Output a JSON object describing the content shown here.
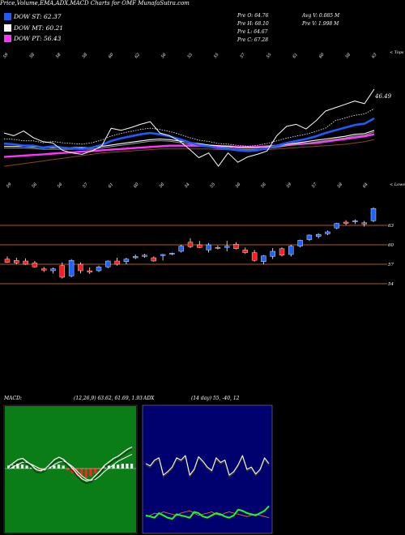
{
  "title": "Price,Volume,EMA,ADX,MACD Charts for OMF MunafaSutra.com",
  "legend": [
    {
      "label": "DOW ST: 62.37",
      "color": "#1e5bff"
    },
    {
      "label": "DOW MT: 60.21",
      "color": "#ffffff"
    },
    {
      "label": "DOW PT: 56.43",
      "color": "#ff33ff"
    }
  ],
  "ohlc": {
    "open": "Pre O: 64.76",
    "high": "Pre H: 68.10",
    "low": "Pre L: 64.67",
    "close": "Pre C: 67.28",
    "avg_vol": "Avg V: 0.085 M",
    "pre_vol": "Pre V: 1.998 M"
  },
  "macd_label": "MACD:",
  "macd_params": "(12,26,9) 63.62, 61.69, 1.93",
  "adx_label": "ADX",
  "adx_params": "(14 day) 55, -40, 12",
  "chart_data": [
    {
      "type": "line",
      "name": "price-ema",
      "top_axis_label": "< Tops",
      "bottom_axis_label": "< Lows",
      "top_numbers": [
        "59",
        "58",
        "58",
        "58",
        "60",
        "62",
        "56",
        "55",
        "55",
        "57",
        "55",
        "61",
        "60",
        "58",
        "63"
      ],
      "bottom_numbers": [
        "59",
        "56",
        "56",
        "57",
        "61",
        "60",
        "56",
        "54",
        "55",
        "56",
        "56",
        "59",
        "57",
        "58",
        "64"
      ],
      "annotation": "46.49",
      "price": [
        60.2,
        59.8,
        60.5,
        59.5,
        58.9,
        58.7,
        57.6,
        57.2,
        57.0,
        57.5,
        58.2,
        60.9,
        60.6,
        61.0,
        61.5,
        61.9,
        60.2,
        59.8,
        59.0,
        57.8,
        56.5,
        57.2,
        55.2,
        57.2,
        55.8,
        56.6,
        57.0,
        57.5,
        59.8,
        61.2,
        61.5,
        60.8,
        62.0,
        63.5,
        64.0,
        64.5,
        65.0,
        64.6,
        66.8
      ],
      "ema_st": [
        58.6,
        58.5,
        58.3,
        58.3,
        58.0,
        58.2,
        58.0,
        57.9,
        57.8,
        58.0,
        58.4,
        59.0,
        59.4,
        59.7,
        60.0,
        60.2,
        60.0,
        59.7,
        59.3,
        58.8,
        58.4,
        58.2,
        57.9,
        57.8,
        57.6,
        57.5,
        57.6,
        57.9,
        58.3,
        58.7,
        59.0,
        59.3,
        59.7,
        60.2,
        60.6,
        61.0,
        61.4,
        61.6,
        62.4
      ],
      "ema_mt": [
        58.2,
        58.2,
        58.2,
        58.1,
        58.0,
        58.0,
        58.0,
        58.0,
        58.0,
        58.0,
        58.2,
        58.4,
        58.6,
        58.8,
        59.0,
        59.2,
        59.3,
        59.2,
        59.0,
        58.8,
        58.6,
        58.4,
        58.3,
        58.2,
        58.0,
        58.0,
        58.0,
        58.1,
        58.3,
        58.5,
        58.7,
        58.9,
        59.1,
        59.3,
        59.5,
        59.7,
        60.0,
        60.1,
        60.6
      ],
      "ema_pt": [
        56.6,
        56.7,
        56.8,
        56.9,
        57.0,
        57.1,
        57.2,
        57.3,
        57.4,
        57.5,
        57.6,
        57.7,
        57.8,
        57.9,
        58.0,
        58.1,
        58.2,
        58.3,
        58.3,
        58.3,
        58.3,
        58.2,
        58.2,
        58.2,
        58.1,
        58.1,
        58.1,
        58.2,
        58.3,
        58.4,
        58.5,
        58.6,
        58.7,
        58.9,
        59.1,
        59.3,
        59.5,
        59.7,
        60.0
      ],
      "ema_lt": [
        55.2,
        55.4,
        55.6,
        55.8,
        56.0,
        56.2,
        56.4,
        56.6,
        56.8,
        57.0,
        57.2,
        57.3,
        57.4,
        57.5,
        57.6,
        57.7,
        57.8,
        57.8,
        57.8,
        57.8,
        57.8,
        57.8,
        57.7,
        57.7,
        57.7,
        57.7,
        57.7,
        57.7,
        57.8,
        57.9,
        58.0,
        58.1,
        58.2,
        58.3,
        58.4,
        58.5,
        58.7,
        58.9,
        59.2
      ]
    },
    {
      "type": "bar",
      "name": "candlestick",
      "y_ticks": [
        "63",
        "60",
        "57",
        "54"
      ],
      "candles": [
        {
          "o": 57.8,
          "h": 58.2,
          "l": 57.2,
          "c": 57.3
        },
        {
          "o": 57.6,
          "h": 58.0,
          "l": 57.0,
          "c": 57.2
        },
        {
          "o": 57.5,
          "h": 57.9,
          "l": 56.9,
          "c": 57.0
        },
        {
          "o": 57.2,
          "h": 57.5,
          "l": 56.5,
          "c": 56.6
        },
        {
          "o": 56.3,
          "h": 56.6,
          "l": 55.8,
          "c": 56.1
        },
        {
          "o": 56.0,
          "h": 56.5,
          "l": 55.6,
          "c": 56.3
        },
        {
          "o": 56.8,
          "h": 57.3,
          "l": 54.8,
          "c": 55.0
        },
        {
          "o": 55.2,
          "h": 57.8,
          "l": 55.0,
          "c": 57.6
        },
        {
          "o": 57.0,
          "h": 57.3,
          "l": 55.6,
          "c": 56.0
        },
        {
          "o": 56.0,
          "h": 56.5,
          "l": 55.5,
          "c": 55.8
        },
        {
          "o": 56.0,
          "h": 56.8,
          "l": 55.8,
          "c": 56.6
        },
        {
          "o": 56.6,
          "h": 57.6,
          "l": 56.4,
          "c": 57.5
        },
        {
          "o": 57.5,
          "h": 58.0,
          "l": 56.8,
          "c": 57.0
        },
        {
          "o": 57.4,
          "h": 58.0,
          "l": 57.0,
          "c": 57.8
        },
        {
          "o": 58.0,
          "h": 58.5,
          "l": 57.8,
          "c": 58.2
        },
        {
          "o": 58.2,
          "h": 58.6,
          "l": 58.0,
          "c": 58.4
        },
        {
          "o": 58.0,
          "h": 58.2,
          "l": 57.4,
          "c": 57.5
        },
        {
          "o": 58.4,
          "h": 58.6,
          "l": 57.6,
          "c": 58.5
        },
        {
          "o": 58.6,
          "h": 58.8,
          "l": 58.4,
          "c": 58.7
        },
        {
          "o": 59.0,
          "h": 60.0,
          "l": 58.8,
          "c": 59.8
        },
        {
          "o": 60.4,
          "h": 61.0,
          "l": 59.5,
          "c": 59.7
        },
        {
          "o": 60.0,
          "h": 60.6,
          "l": 59.5,
          "c": 59.6
        },
        {
          "o": 59.2,
          "h": 60.3,
          "l": 58.8,
          "c": 60.0
        },
        {
          "o": 59.6,
          "h": 59.9,
          "l": 59.3,
          "c": 59.5
        },
        {
          "o": 59.6,
          "h": 60.6,
          "l": 59.0,
          "c": 59.8
        },
        {
          "o": 60.1,
          "h": 60.4,
          "l": 59.3,
          "c": 59.4
        },
        {
          "o": 59.2,
          "h": 59.6,
          "l": 58.6,
          "c": 58.8
        },
        {
          "o": 58.8,
          "h": 59.2,
          "l": 57.4,
          "c": 57.6
        },
        {
          "o": 57.4,
          "h": 58.4,
          "l": 57.0,
          "c": 58.3
        },
        {
          "o": 58.2,
          "h": 59.5,
          "l": 57.8,
          "c": 59.0
        },
        {
          "o": 59.4,
          "h": 59.6,
          "l": 58.2,
          "c": 58.4
        },
        {
          "o": 58.5,
          "h": 60.0,
          "l": 58.2,
          "c": 59.8
        },
        {
          "o": 59.8,
          "h": 60.8,
          "l": 59.6,
          "c": 60.7
        },
        {
          "o": 60.8,
          "h": 61.6,
          "l": 60.6,
          "c": 61.5
        },
        {
          "o": 61.3,
          "h": 61.8,
          "l": 61.0,
          "c": 61.6
        },
        {
          "o": 61.7,
          "h": 62.2,
          "l": 61.5,
          "c": 62.0
        },
        {
          "o": 62.6,
          "h": 63.4,
          "l": 62.4,
          "c": 63.3
        },
        {
          "o": 63.5,
          "h": 63.8,
          "l": 63.0,
          "c": 63.3
        },
        {
          "o": 63.6,
          "h": 63.9,
          "l": 63.2,
          "c": 63.7
        },
        {
          "o": 63.2,
          "h": 63.7,
          "l": 62.8,
          "c": 63.4
        },
        {
          "o": 63.7,
          "h": 65.8,
          "l": 63.5,
          "c": 65.6
        }
      ]
    },
    {
      "type": "line",
      "name": "macd",
      "macd": [
        0.2,
        0.5,
        0.8,
        0.9,
        0.6,
        0.3,
        -0.1,
        -0.2,
        0.0,
        0.4,
        0.8,
        1.0,
        0.8,
        0.4,
        0.0,
        -0.5,
        -0.9,
        -1.1,
        -1.0,
        -0.6,
        -0.2,
        0.3,
        0.6,
        0.9,
        1.1,
        1.4,
        1.7,
        1.9
      ],
      "signal": [
        0.1,
        0.3,
        0.5,
        0.7,
        0.7,
        0.5,
        0.3,
        0.1,
        0.0,
        0.2,
        0.5,
        0.7,
        0.8,
        0.6,
        0.3,
        -0.1,
        -0.5,
        -0.8,
        -0.9,
        -0.8,
        -0.5,
        -0.1,
        0.2,
        0.5,
        0.8,
        1.0,
        1.2,
        1.4
      ],
      "hist": [
        0.3,
        0.4,
        0.5,
        0.4,
        0.3,
        0.1,
        -0.1,
        -0.2,
        0.0,
        0.2,
        0.3,
        0.4,
        0.3,
        -0.2,
        -0.5,
        -0.8,
        -0.9,
        -1.0,
        -0.8,
        -0.5,
        -0.1,
        0.2,
        0.3,
        0.4,
        0.4,
        0.5,
        0.5,
        0.5
      ]
    },
    {
      "type": "line",
      "name": "adx",
      "adx": [
        55,
        53,
        58,
        60,
        45,
        48,
        52,
        60,
        58,
        62,
        45,
        50,
        61,
        57,
        52,
        49,
        60,
        56,
        58,
        45,
        48,
        54,
        62,
        50,
        52,
        46,
        50,
        60,
        55
      ],
      "plus_di": [
        10,
        9,
        8,
        12,
        10,
        8,
        7,
        11,
        10,
        9,
        8,
        13,
        12,
        9,
        8,
        10,
        12,
        11,
        9,
        8,
        10,
        15,
        14,
        12,
        11,
        10,
        12,
        14,
        18
      ],
      "minus_di": [
        9,
        10,
        12,
        11,
        13,
        12,
        11,
        10,
        12,
        13,
        14,
        12,
        10,
        11,
        12,
        13,
        11,
        10,
        12,
        13,
        12,
        11,
        10,
        9,
        10,
        11,
        10,
        9,
        8
      ]
    }
  ]
}
